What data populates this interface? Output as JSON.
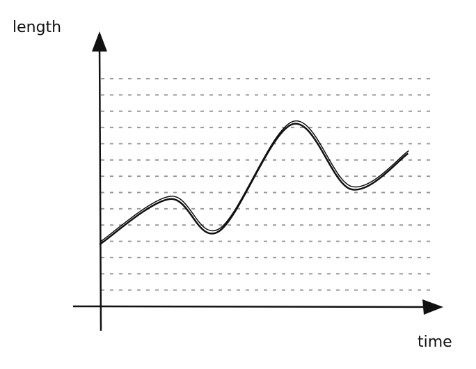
{
  "chart_data": {
    "type": "line",
    "x_label": "time",
    "y_label": "length",
    "x": [
      0,
      4.2,
      7.1,
      11.5,
      15,
      18.4
    ],
    "values": [
      3.8,
      6.6,
      4.6,
      11.2,
      7.2,
      9.4
    ],
    "color": "#111111",
    "xlim": [
      0,
      20
    ],
    "ylim": [
      0,
      14
    ],
    "yticks": [
      1,
      2,
      3,
      4,
      5,
      6,
      7,
      8,
      9,
      10,
      11,
      12,
      13,
      14
    ],
    "grid": true,
    "tick_labels": false
  }
}
